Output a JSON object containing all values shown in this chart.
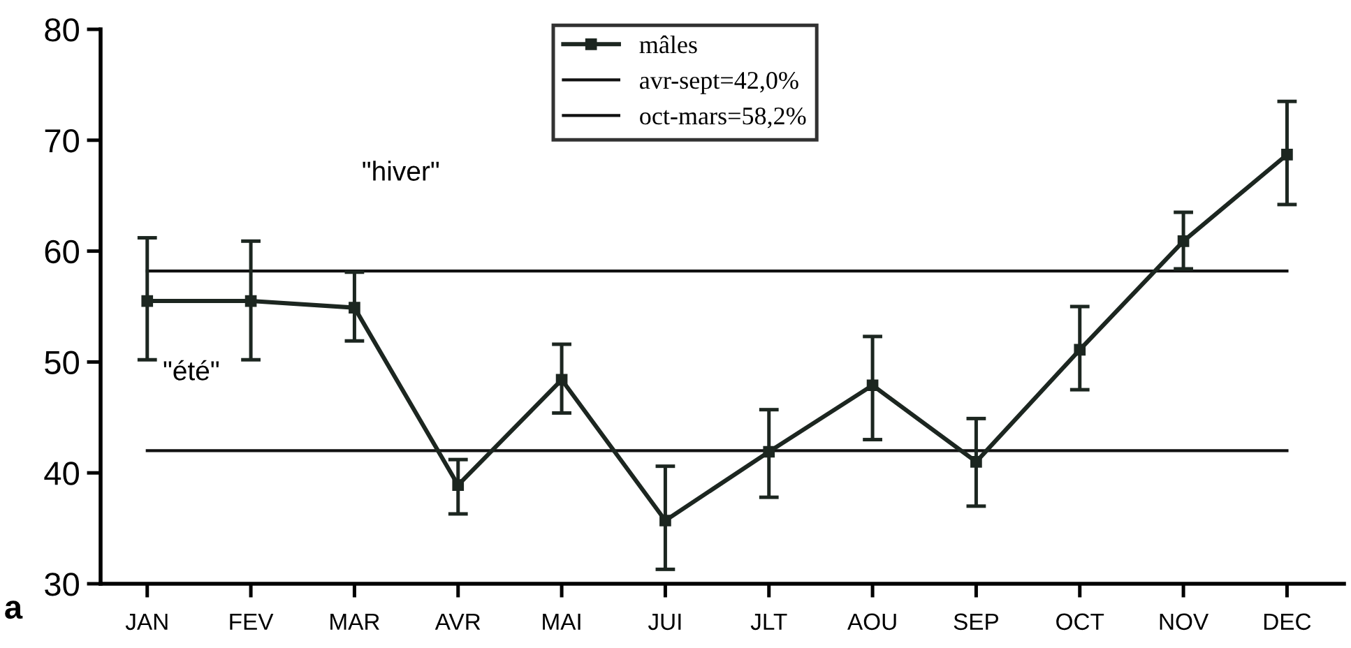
{
  "chart_data": {
    "type": "line",
    "categories": [
      "JAN",
      "FEV",
      "MAR",
      "AVR",
      "MAI",
      "JUI",
      "JLT",
      "AOU",
      "SEP",
      "OCT",
      "NOV",
      "DEC"
    ],
    "series": [
      {
        "name": "mâles",
        "color": "#1c2620",
        "values": [
          55.5,
          55.5,
          54.9,
          38.9,
          48.4,
          35.7,
          41.9,
          47.9,
          41.0,
          51.1,
          60.9,
          68.7
        ],
        "errors": [
          [
            50.2,
            61.2
          ],
          [
            50.2,
            60.9
          ],
          [
            51.9,
            58.1
          ],
          [
            36.3,
            41.2
          ],
          [
            45.4,
            51.6
          ],
          [
            31.3,
            40.6
          ],
          [
            37.8,
            45.7
          ],
          [
            43.0,
            52.3
          ],
          [
            37.0,
            44.9
          ],
          [
            47.5,
            55.0
          ],
          [
            58.4,
            63.5
          ],
          [
            64.2,
            73.5
          ]
        ]
      }
    ],
    "ref_lines": [
      {
        "axis": "y",
        "value": 42.0,
        "label": "avr-sept=42,0%",
        "color": "#111111"
      },
      {
        "axis": "y",
        "value": 58.2,
        "label": "oct-mars=58,2%",
        "color": "#111111"
      }
    ],
    "annotations": [
      "\"hiver\"",
      "\"été\"",
      "a"
    ],
    "ylim": [
      30,
      80
    ],
    "yticks": [
      30,
      40,
      50,
      60,
      70,
      80
    ],
    "marker": "square",
    "line_style": "solid",
    "grid": false,
    "legend": "top"
  }
}
